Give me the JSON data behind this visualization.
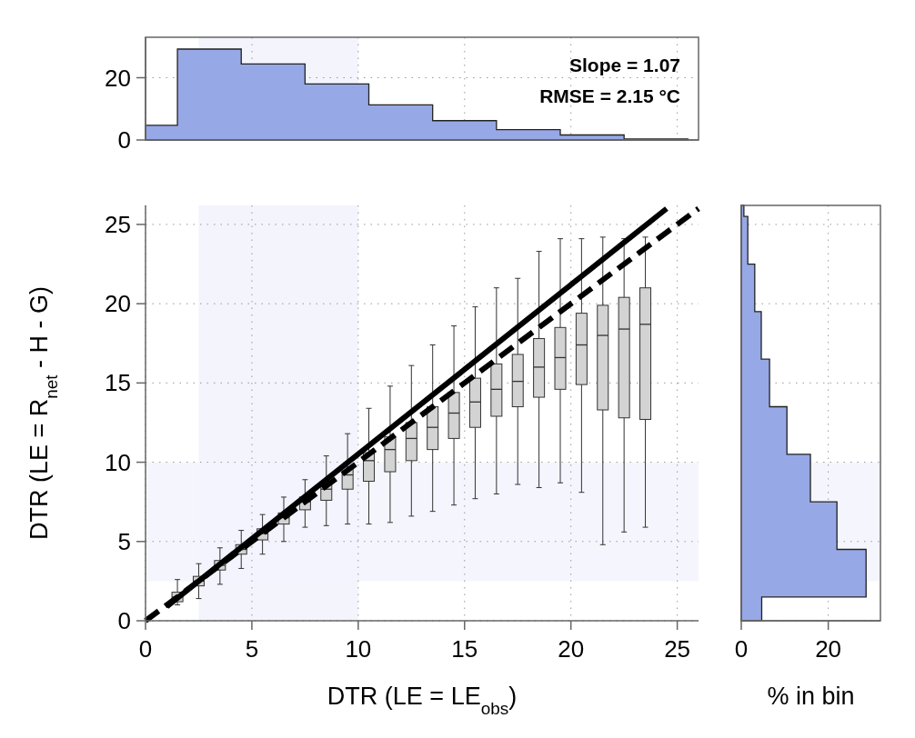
{
  "chart_data": [
    {
      "type": "histogram",
      "bins": [
        0,
        1.5,
        4.5,
        7.5,
        10.5,
        13.5,
        16.5,
        19.5,
        22.5,
        25.5
      ],
      "values": [
        4.7,
        29.2,
        24.4,
        18.0,
        11.3,
        6.2,
        3.3,
        1.6,
        0.3
      ],
      "color": "#97a8e6",
      "xlim": [
        0,
        26
      ],
      "ylim": [
        0,
        33
      ],
      "xticks": [
        0,
        5,
        10,
        15,
        20,
        25
      ],
      "yticks": [
        0,
        20
      ],
      "tick_labels": "y",
      "grid": true,
      "bands": [
        {
          "axis": "x",
          "from": 2.5,
          "to": 10,
          "color": "#f3f4fc"
        }
      ],
      "annotations": [
        "Slope = 1.07",
        "RMSE = 2.15 °C"
      ]
    },
    {
      "type": "box",
      "xlabel": "DTR (LE = LE$_{obs}$)",
      "ylabel": "DTR (LE = R$_{net}$ - H - G)",
      "xlim": [
        0,
        26
      ],
      "ylim": [
        0,
        26.2
      ],
      "xticks": [
        0,
        5,
        10,
        15,
        20,
        25
      ],
      "yticks": [
        0,
        5,
        10,
        15,
        20,
        25
      ],
      "grid": true,
      "bands": [
        {
          "axis": "x",
          "from": 2.5,
          "to": 10,
          "color": "#f3f4fc"
        },
        {
          "axis": "y",
          "from": 2.5,
          "to": 10,
          "color": "#f3f4fc"
        }
      ],
      "series": [
        {
          "color": "#d3d3d3",
          "x": [
            1.5,
            2.5,
            3.5,
            4.5,
            5.5,
            6.5,
            7.5,
            8.5,
            9.5,
            10.5,
            11.5,
            12.5,
            13.5,
            14.5,
            15.5,
            16.5,
            17.5,
            18.5,
            19.5,
            20.5,
            21.5,
            22.5,
            23.5
          ],
          "boxes": [
            {
              "low": 1.0,
              "q1": 1.2,
              "median": 1.5,
              "q3": 1.8,
              "high": 2.6
            },
            {
              "low": 1.4,
              "q1": 2.2,
              "median": 2.5,
              "q3": 2.8,
              "high": 3.6
            },
            {
              "low": 2.3,
              "q1": 3.2,
              "median": 3.5,
              "q3": 3.8,
              "high": 4.6
            },
            {
              "low": 3.3,
              "q1": 4.2,
              "median": 4.5,
              "q3": 4.8,
              "high": 5.7
            },
            {
              "low": 4.2,
              "q1": 5.1,
              "median": 5.5,
              "q3": 5.8,
              "high": 6.7
            },
            {
              "low": 5.0,
              "q1": 6.1,
              "median": 6.5,
              "q3": 6.8,
              "high": 7.8
            },
            {
              "low": 5.9,
              "q1": 7.0,
              "median": 7.5,
              "q3": 7.8,
              "high": 8.9
            },
            {
              "low": 6.0,
              "q1": 7.6,
              "median": 8.3,
              "q3": 8.8,
              "high": 10.4
            },
            {
              "low": 6.1,
              "q1": 8.3,
              "median": 9.2,
              "q3": 9.7,
              "high": 11.8
            },
            {
              "low": 6.1,
              "q1": 8.8,
              "median": 10.1,
              "q3": 10.6,
              "high": 13.4
            },
            {
              "low": 6.2,
              "q1": 9.4,
              "median": 10.8,
              "q3": 11.6,
              "high": 14.8
            },
            {
              "low": 6.6,
              "q1": 10.1,
              "median": 11.5,
              "q3": 12.5,
              "high": 16.1
            },
            {
              "low": 6.9,
              "q1": 10.8,
              "median": 12.2,
              "q3": 13.5,
              "high": 17.4
            },
            {
              "low": 7.3,
              "q1": 11.5,
              "median": 13.1,
              "q3": 14.4,
              "high": 18.6
            },
            {
              "low": 7.7,
              "q1": 12.2,
              "median": 13.8,
              "q3": 15.3,
              "high": 19.8
            },
            {
              "low": 8.0,
              "q1": 12.9,
              "median": 14.6,
              "q3": 16.2,
              "high": 21.0
            },
            {
              "low": 8.6,
              "q1": 13.5,
              "median": 15.1,
              "q3": 16.8,
              "high": 21.6
            },
            {
              "low": 8.4,
              "q1": 14.1,
              "median": 16.0,
              "q3": 17.8,
              "high": 23.3
            },
            {
              "low": 8.7,
              "q1": 14.6,
              "median": 16.6,
              "q3": 18.5,
              "high": 24.1
            },
            {
              "low": 8.1,
              "q1": 14.9,
              "median": 17.4,
              "q3": 19.4,
              "high": 24.1
            },
            {
              "low": 4.8,
              "q1": 13.3,
              "median": 18.0,
              "q3": 19.9,
              "high": 24.2
            },
            {
              "low": 5.6,
              "q1": 12.8,
              "median": 18.4,
              "q3": 20.4,
              "high": 24.1
            },
            {
              "low": 5.9,
              "q1": 12.7,
              "median": 18.7,
              "q3": 21.0,
              "high": 24.2
            }
          ]
        },
        {
          "type": "line",
          "x": [
            1,
            24.5
          ],
          "values": [
            0.9,
            26
          ],
          "color": "#000000",
          "line_style": "solid"
        },
        {
          "type": "line",
          "x": [
            0,
            26
          ],
          "values": [
            0,
            26
          ],
          "color": "#000000",
          "line_style": "dashed"
        }
      ]
    },
    {
      "type": "histogram",
      "orientation": "horizontal",
      "xlabel": "% in bin",
      "bins": [
        0,
        1.5,
        4.5,
        7.5,
        10.5,
        13.5,
        16.5,
        19.5,
        22.5,
        25.5,
        26.2
      ],
      "values": [
        4.7,
        28.7,
        22.0,
        15.9,
        10.5,
        6.5,
        4.6,
        3.1,
        1.5,
        0.6
      ],
      "color": "#97a8e6",
      "xlim": [
        0,
        32
      ],
      "ylim": [
        0,
        26.2
      ],
      "xticks": [
        0,
        20
      ],
      "yticks": [
        0,
        5,
        10,
        15,
        20,
        25
      ],
      "tick_labels": "x",
      "grid": true,
      "bands": [
        {
          "axis": "y",
          "from": 2.5,
          "to": 10,
          "color": "#f3f4fc"
        }
      ]
    }
  ]
}
